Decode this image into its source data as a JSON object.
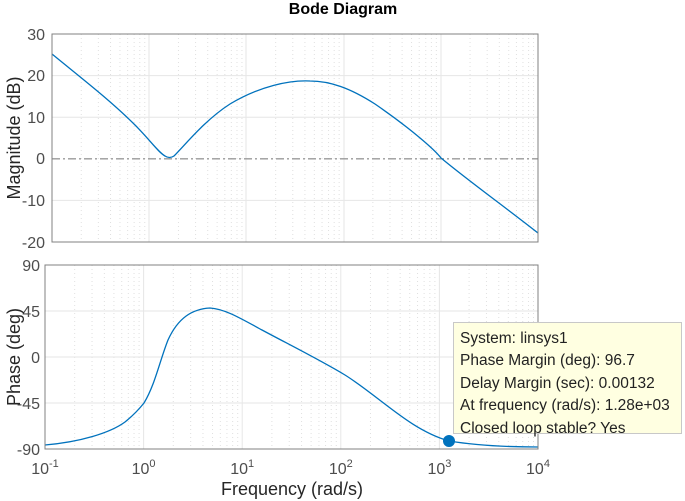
{
  "chart_data": [
    {
      "type": "line",
      "title": "Bode Diagram",
      "xlabel": "Frequency  (rad/s)",
      "ylabel": "Magnitude (dB)",
      "xscale": "log",
      "xlim": [
        0.1,
        10000
      ],
      "ylim": [
        -20,
        30
      ],
      "yticks": [
        -20,
        -10,
        0,
        10,
        20,
        30
      ],
      "xticks": [
        "10^-1",
        "10^0",
        "10^1",
        "10^2",
        "10^3",
        "10^4"
      ],
      "grid": true,
      "reference_line": {
        "y": 0,
        "style": "dash-dot"
      },
      "series": [
        {
          "name": "linsys1",
          "x": [
            0.1,
            0.3,
            1.0,
            1.6,
            2.5,
            5,
            10,
            20,
            45,
            100,
            300,
            1280,
            3000,
            10000
          ],
          "values": [
            25,
            16,
            5,
            0.5,
            4,
            10,
            15,
            17.8,
            18.5,
            17.5,
            11,
            0,
            -7.5,
            -18
          ]
        }
      ]
    },
    {
      "type": "line",
      "xlabel": "Frequency  (rad/s)",
      "ylabel": "Phase (deg)",
      "xscale": "log",
      "xlim": [
        0.1,
        10000
      ],
      "ylim": [
        -90,
        90
      ],
      "yticks": [
        -90,
        -45,
        0,
        45,
        90
      ],
      "xticks": [
        "10^-1",
        "10^0",
        "10^1",
        "10^2",
        "10^3",
        "10^4"
      ],
      "grid": true,
      "series": [
        {
          "name": "linsys1",
          "x": [
            0.1,
            0.3,
            0.7,
            1.0,
            1.5,
            2.5,
            4.6,
            10,
            30,
            100,
            300,
            1280,
            3000,
            10000
          ],
          "values": [
            -86,
            -80,
            -65,
            -45,
            0,
            38,
            48,
            42,
            25,
            0,
            -40,
            -83.3,
            -87,
            -88
          ]
        }
      ],
      "annotations": [
        {
          "x": 1280,
          "y": -83.3,
          "marker": "filled-circle"
        }
      ]
    }
  ],
  "title": "Bode Diagram",
  "xlabel": "Frequency  (rad/s)",
  "top": {
    "ylabel": "Magnitude (dB)",
    "yticks": [
      "30",
      "20",
      "10",
      "0",
      "-10",
      "-20"
    ]
  },
  "bottom": {
    "ylabel": "Phase (deg)",
    "yticks": [
      "90",
      "45",
      "0",
      "-45",
      "-90"
    ]
  },
  "xticks": {
    "base": "10",
    "exps": [
      "-1",
      "0",
      "1",
      "2",
      "3",
      "4"
    ]
  },
  "datatip": {
    "line1": "System: linsys1",
    "line2": "Phase Margin (deg): 96.7",
    "line3": "Delay Margin (sec): 0.00132",
    "line4": "At frequency (rad/s): 1.28e+03",
    "line5": "Closed loop stable? Yes"
  },
  "colors": {
    "line": "#0072bd",
    "grid": "#e6e6e6",
    "axis": "#808080",
    "tip_bg": "#ffffe1"
  }
}
